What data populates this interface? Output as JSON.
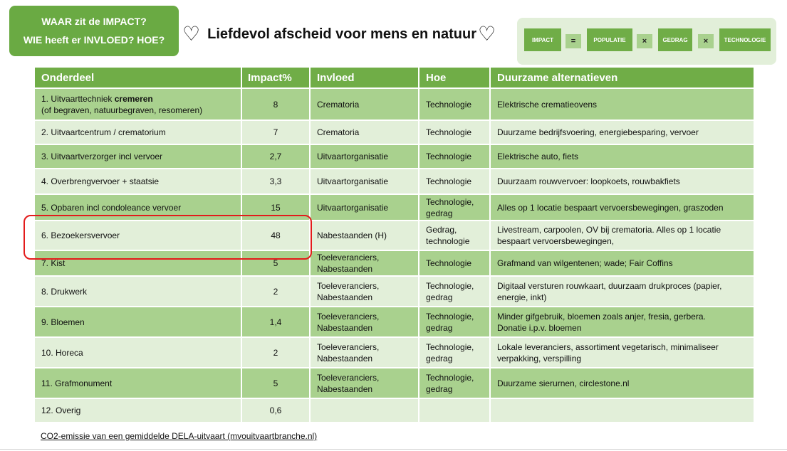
{
  "callout": {
    "line1": "WAAR zit de IMPACT?",
    "line2": "WIE heeft er INVLOED? HOE?"
  },
  "title": {
    "text": "Liefdevol afscheid voor mens en natuur",
    "heart_glyph": "♡",
    "icon": "heart-outline-icon"
  },
  "formula": {
    "impact": "IMPACT",
    "eq": "=",
    "populatie": "POPULATIE",
    "times1": "×",
    "gedrag": "GEDRAG",
    "times2": "×",
    "technologie": "TECHNOLOGIE"
  },
  "table": {
    "headers": {
      "onderdeel": "Onderdeel",
      "impact": "Impact%",
      "invloed": "Invloed",
      "hoe": "Hoe",
      "alternatieven": "Duurzame alternatieven"
    },
    "rows": [
      {
        "onderdeel_pre": "1. Uitvaarttechniek ",
        "onderdeel_bold": "cremeren",
        "onderdeel_line2": "(of begraven, natuurbegraven, resomeren)",
        "impact": "8",
        "invloed": "Crematoria",
        "invloed_line2": "",
        "hoe": "Technologie",
        "hoe_line2": "",
        "alt": "Elektrische crematieovens",
        "alt_line2": ""
      },
      {
        "onderdeel_pre": "2. Uitvaartcentrum / crematorium",
        "onderdeel_bold": "",
        "onderdeel_line2": "",
        "impact": "7",
        "invloed": "Crematoria",
        "invloed_line2": "",
        "hoe": "Technologie",
        "hoe_line2": "",
        "alt": "Duurzame bedrijfsvoering, energiebesparing, vervoer",
        "alt_line2": ""
      },
      {
        "onderdeel_pre": "3. Uitvaartverzorger incl vervoer",
        "onderdeel_bold": "",
        "onderdeel_line2": "",
        "impact": "2,7",
        "invloed": "Uitvaartorganisatie",
        "invloed_line2": "",
        "hoe": "Technologie",
        "hoe_line2": "",
        "alt": "Elektrische auto, fiets",
        "alt_line2": ""
      },
      {
        "onderdeel_pre": "4. Overbrengvervoer + staatsie",
        "onderdeel_bold": "",
        "onderdeel_line2": "",
        "impact": "3,3",
        "invloed": "Uitvaartorganisatie",
        "invloed_line2": "",
        "hoe": "Technologie",
        "hoe_line2": "",
        "alt": "Duurzaam rouwvervoer: loopkoets, rouwbakfiets",
        "alt_line2": ""
      },
      {
        "onderdeel_pre": "5. Opbaren incl condoleance vervoer",
        "onderdeel_bold": "",
        "onderdeel_line2": "",
        "impact": "15",
        "invloed": "Uitvaartorganisatie",
        "invloed_line2": "",
        "hoe": "Technologie,",
        "hoe_line2": "gedrag",
        "alt": "Alles op 1 locatie bespaart vervoersbewegingen, graszoden",
        "alt_line2": ""
      },
      {
        "onderdeel_pre": "6. Bezoekersvervoer",
        "onderdeel_bold": "",
        "onderdeel_line2": "",
        "impact": "48",
        "invloed": "Nabestaanden (H)",
        "invloed_line2": "",
        "hoe": "Gedrag,",
        "hoe_line2": "technologie",
        "alt": "Livestream, carpoolen, OV bij crematoria. Alles op 1 locatie",
        "alt_line2": "bespaart vervoersbewegingen,"
      },
      {
        "onderdeel_pre": "7. Kist",
        "onderdeel_bold": "",
        "onderdeel_line2": "",
        "impact": "5",
        "invloed": "Toeleveranciers,",
        "invloed_line2": "Nabestaanden",
        "hoe": "Technologie",
        "hoe_line2": "",
        "alt": "Grafmand van wilgentenen; wade; Fair Coffins",
        "alt_line2": ""
      },
      {
        "onderdeel_pre": "8. Drukwerk",
        "onderdeel_bold": "",
        "onderdeel_line2": "",
        "impact": "2",
        "invloed": "Toeleveranciers,",
        "invloed_line2": "Nabestaanden",
        "hoe": "Technologie,",
        "hoe_line2": "gedrag",
        "alt": "Digitaal versturen rouwkaart, duurzaam drukproces (papier,",
        "alt_line2": "energie, inkt)"
      },
      {
        "onderdeel_pre": "9. Bloemen",
        "onderdeel_bold": "",
        "onderdeel_line2": "",
        "impact": "1,4",
        "invloed": "Toeleveranciers,",
        "invloed_line2": "Nabestaanden",
        "hoe": "Technologie,",
        "hoe_line2": "gedrag",
        "alt": "Minder gifgebruik, bloemen zoals anjer, fresia, gerbera.",
        "alt_line2": "Donatie i.p.v. bloemen"
      },
      {
        "onderdeel_pre": "10. Horeca",
        "onderdeel_bold": "",
        "onderdeel_line2": "",
        "impact": "2",
        "invloed": "Toeleveranciers,",
        "invloed_line2": "Nabestaanden",
        "hoe": "Technologie,",
        "hoe_line2": "gedrag",
        "alt": "Lokale leveranciers, assortiment vegetarisch, minimaliseer",
        "alt_line2": "verpakking, verspilling"
      },
      {
        "onderdeel_pre": "11. Grafmonument",
        "onderdeel_bold": "",
        "onderdeel_line2": "",
        "impact": "5",
        "invloed": "Toeleveranciers,",
        "invloed_line2": "Nabestaanden",
        "hoe": "Technologie,",
        "hoe_line2": "gedrag",
        "alt": "Duurzame sierurnen, circlestone.nl",
        "alt_line2": ""
      },
      {
        "onderdeel_pre": "12. Overig",
        "onderdeel_bold": "",
        "onderdeel_line2": "",
        "impact": "0,6",
        "invloed": "",
        "invloed_line2": "",
        "hoe": "",
        "hoe_line2": "",
        "alt": "",
        "alt_line2": ""
      }
    ]
  },
  "footnote": "CO2-emissie van een gemiddelde DELA-uitvaart (mvouitvaartbranche.nl)",
  "colors": {
    "header_green": "#70ad47",
    "row_dark": "#a9d18e",
    "row_light": "#e2efd9",
    "callout_green": "#6aaa43",
    "highlight_red": "#e31b1b"
  }
}
